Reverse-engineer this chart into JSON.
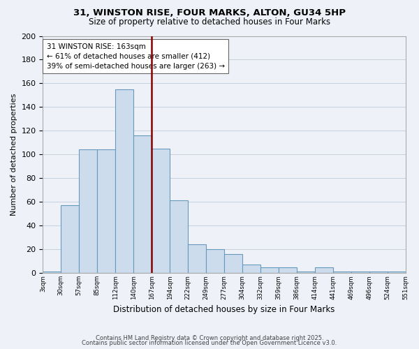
{
  "title": "31, WINSTON RISE, FOUR MARKS, ALTON, GU34 5HP",
  "subtitle": "Size of property relative to detached houses in Four Marks",
  "xlabel": "Distribution of detached houses by size in Four Marks",
  "ylabel": "Number of detached properties",
  "bin_labels": [
    "3sqm",
    "30sqm",
    "57sqm",
    "85sqm",
    "112sqm",
    "140sqm",
    "167sqm",
    "194sqm",
    "222sqm",
    "249sqm",
    "277sqm",
    "304sqm",
    "332sqm",
    "359sqm",
    "386sqm",
    "414sqm",
    "441sqm",
    "469sqm",
    "496sqm",
    "524sqm",
    "551sqm"
  ],
  "bar_heights": [
    1,
    57,
    104,
    104,
    155,
    116,
    105,
    61,
    24,
    20,
    16,
    7,
    5,
    5,
    1,
    5,
    1,
    1,
    1,
    1
  ],
  "bar_color": "#ccdcec",
  "bar_edge_color": "#6699bb",
  "vline_color": "#880000",
  "annotation_title": "31 WINSTON RISE: 163sqm",
  "annotation_line1": "← 61% of detached houses are smaller (412)",
  "annotation_line2": "39% of semi-detached houses are larger (263) →",
  "annotation_box_color": "#ffffff",
  "annotation_box_edge": "#666666",
  "ylim": [
    0,
    200
  ],
  "yticks": [
    0,
    20,
    40,
    60,
    80,
    100,
    120,
    140,
    160,
    180,
    200
  ],
  "footer1": "Contains HM Land Registry data © Crown copyright and database right 2025.",
  "footer2": "Contains public sector information licensed under the Open Government Licence v3.0.",
  "bg_color": "#eef2f8",
  "grid_color": "#c5d0de"
}
